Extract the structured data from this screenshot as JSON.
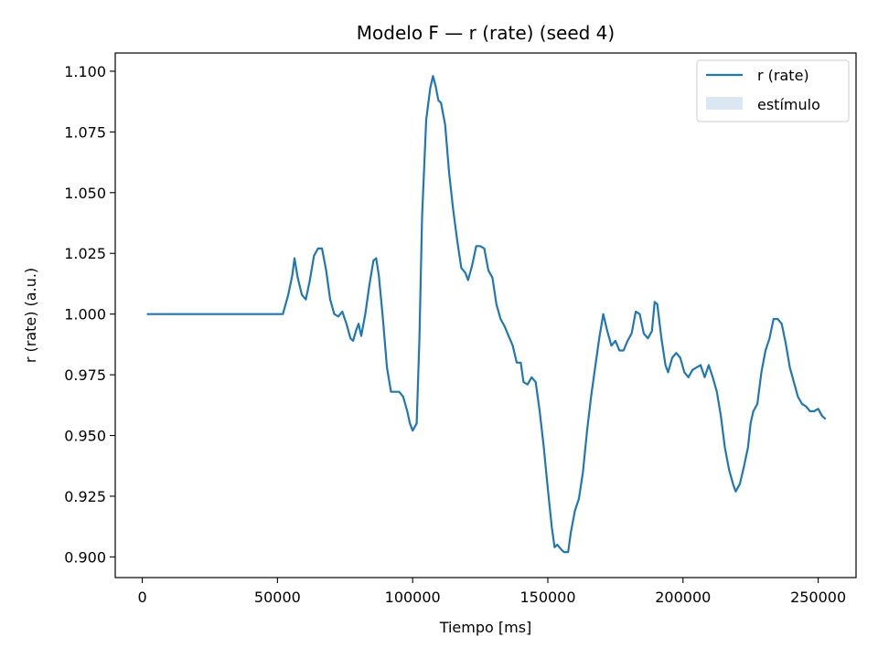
{
  "chart_data": {
    "type": "line",
    "title": "Modelo F — r (rate) (seed 4)",
    "xlabel": "Tiempo [ms]",
    "ylabel": "r (rate) (a.u.)",
    "xlim": [
      -10000,
      264000
    ],
    "ylim": [
      0.8915,
      1.1075
    ],
    "xticks": [
      0,
      50000,
      100000,
      150000,
      200000,
      250000
    ],
    "xtick_labels": [
      "0",
      "50000",
      "100000",
      "150000",
      "200000",
      "250000"
    ],
    "yticks": [
      0.9,
      0.925,
      0.95,
      0.975,
      1.0,
      1.025,
      1.05,
      1.075,
      1.1
    ],
    "ytick_labels": [
      "0.900",
      "0.925",
      "0.950",
      "0.975",
      "1.000",
      "1.025",
      "1.050",
      "1.075",
      "1.100"
    ],
    "grid": false,
    "legend_position": "top-right",
    "legend": [
      {
        "label": "r (rate)",
        "kind": "line",
        "color": "#1f77b4"
      },
      {
        "label": "estímulo",
        "kind": "patch",
        "color": "#dbe8f3"
      }
    ],
    "series": [
      {
        "name": "r (rate)",
        "color": "#1f77b4",
        "points": [
          [
            2000,
            1.0
          ],
          [
            20000,
            1.0
          ],
          [
            40000,
            1.0
          ],
          [
            52000,
            1.0
          ],
          [
            54000,
            1.008
          ],
          [
            55500,
            1.016
          ],
          [
            56300,
            1.023
          ],
          [
            57500,
            1.015
          ],
          [
            59000,
            1.008
          ],
          [
            60500,
            1.006
          ],
          [
            62000,
            1.014
          ],
          [
            63500,
            1.024
          ],
          [
            65000,
            1.027
          ],
          [
            66500,
            1.027
          ],
          [
            68000,
            1.018
          ],
          [
            69500,
            1.006
          ],
          [
            71000,
            1.0
          ],
          [
            72500,
            0.999
          ],
          [
            74000,
            1.001
          ],
          [
            75500,
            0.996
          ],
          [
            77000,
            0.99
          ],
          [
            78000,
            0.989
          ],
          [
            79000,
            0.993
          ],
          [
            80000,
            0.996
          ],
          [
            81000,
            0.991
          ],
          [
            82500,
            1.0
          ],
          [
            84000,
            1.012
          ],
          [
            85500,
            1.022
          ],
          [
            86500,
            1.023
          ],
          [
            87500,
            1.016
          ],
          [
            89000,
            0.998
          ],
          [
            90500,
            0.978
          ],
          [
            92000,
            0.968
          ],
          [
            93500,
            0.968
          ],
          [
            95000,
            0.968
          ],
          [
            96500,
            0.966
          ],
          [
            98000,
            0.96
          ],
          [
            99000,
            0.955
          ],
          [
            100000,
            0.952
          ],
          [
            101500,
            0.955
          ],
          [
            102500,
            0.99
          ],
          [
            103500,
            1.04
          ],
          [
            105000,
            1.08
          ],
          [
            106500,
            1.093
          ],
          [
            107500,
            1.098
          ],
          [
            108500,
            1.094
          ],
          [
            109500,
            1.088
          ],
          [
            110500,
            1.087
          ],
          [
            112000,
            1.078
          ],
          [
            113500,
            1.058
          ],
          [
            115000,
            1.043
          ],
          [
            116500,
            1.03
          ],
          [
            118000,
            1.019
          ],
          [
            119500,
            1.017
          ],
          [
            120500,
            1.014
          ],
          [
            122000,
            1.02
          ],
          [
            123500,
            1.028
          ],
          [
            125000,
            1.028
          ],
          [
            126500,
            1.027
          ],
          [
            128000,
            1.018
          ],
          [
            129500,
            1.015
          ],
          [
            131000,
            1.004
          ],
          [
            132500,
            0.998
          ],
          [
            134000,
            0.995
          ],
          [
            135500,
            0.991
          ],
          [
            137000,
            0.987
          ],
          [
            138500,
            0.98
          ],
          [
            140000,
            0.98
          ],
          [
            141000,
            0.972
          ],
          [
            142500,
            0.971
          ],
          [
            144000,
            0.974
          ],
          [
            145500,
            0.972
          ],
          [
            147000,
            0.96
          ],
          [
            148500,
            0.945
          ],
          [
            150000,
            0.928
          ],
          [
            151500,
            0.912
          ],
          [
            152500,
            0.904
          ],
          [
            153500,
            0.905
          ],
          [
            155000,
            0.903
          ],
          [
            156000,
            0.902
          ],
          [
            157500,
            0.902
          ],
          [
            158500,
            0.91
          ],
          [
            160000,
            0.919
          ],
          [
            161500,
            0.924
          ],
          [
            163000,
            0.935
          ],
          [
            164500,
            0.952
          ],
          [
            166000,
            0.966
          ],
          [
            167500,
            0.978
          ],
          [
            169000,
            0.99
          ],
          [
            170500,
            1.0
          ],
          [
            172000,
            0.993
          ],
          [
            173500,
            0.987
          ],
          [
            175000,
            0.989
          ],
          [
            176500,
            0.985
          ],
          [
            178000,
            0.985
          ],
          [
            179500,
            0.989
          ],
          [
            181000,
            0.992
          ],
          [
            182500,
            1.001
          ],
          [
            184000,
            1.0
          ],
          [
            185500,
            0.992
          ],
          [
            187000,
            0.99
          ],
          [
            188500,
            0.993
          ],
          [
            189500,
            1.005
          ],
          [
            190500,
            1.004
          ],
          [
            192000,
            0.99
          ],
          [
            193500,
            0.979
          ],
          [
            194500,
            0.976
          ],
          [
            196000,
            0.982
          ],
          [
            197500,
            0.984
          ],
          [
            199000,
            0.982
          ],
          [
            200500,
            0.976
          ],
          [
            202000,
            0.974
          ],
          [
            203500,
            0.977
          ],
          [
            205000,
            0.978
          ],
          [
            206500,
            0.979
          ],
          [
            208000,
            0.974
          ],
          [
            209500,
            0.979
          ],
          [
            211000,
            0.974
          ],
          [
            212500,
            0.968
          ],
          [
            214000,
            0.958
          ],
          [
            215500,
            0.945
          ],
          [
            217000,
            0.936
          ],
          [
            218500,
            0.93
          ],
          [
            219500,
            0.927
          ],
          [
            221000,
            0.93
          ],
          [
            222500,
            0.937
          ],
          [
            224000,
            0.945
          ],
          [
            225000,
            0.955
          ],
          [
            226000,
            0.96
          ],
          [
            227500,
            0.963
          ],
          [
            229000,
            0.976
          ],
          [
            230500,
            0.985
          ],
          [
            232000,
            0.99
          ],
          [
            233500,
            0.998
          ],
          [
            235000,
            0.998
          ],
          [
            236500,
            0.996
          ],
          [
            238000,
            0.988
          ],
          [
            239500,
            0.978
          ],
          [
            241000,
            0.972
          ],
          [
            242500,
            0.966
          ],
          [
            244000,
            0.963
          ],
          [
            245500,
            0.962
          ],
          [
            247000,
            0.96
          ],
          [
            248500,
            0.96
          ],
          [
            250000,
            0.961
          ],
          [
            251500,
            0.958
          ],
          [
            252500,
            0.957
          ]
        ]
      }
    ]
  }
}
